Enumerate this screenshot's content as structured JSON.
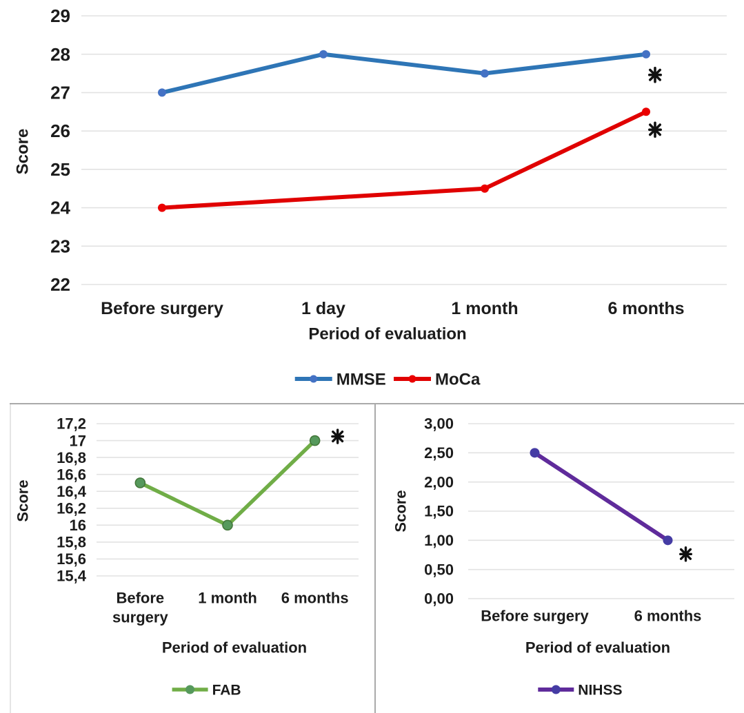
{
  "figure": {
    "background": "#ffffff",
    "text_color": "#1c1c1c",
    "grid_color": "#e2e2e2",
    "divider_color": "#a9a9a9",
    "significance_marker": "*",
    "significance_color": "#111111"
  },
  "chart_data": [
    {
      "id": "cognitive",
      "type": "line",
      "title": "",
      "xlabel": "Period of evaluation",
      "ylabel": "Score",
      "categories": [
        "Before surgery",
        "1 day",
        "1 month",
        "6 months"
      ],
      "ylim": [
        22,
        29
      ],
      "grid": true,
      "legend_position": "bottom",
      "y_ticks": [
        {
          "label": "29",
          "value": 29
        },
        {
          "label": "28",
          "value": 28
        },
        {
          "label": "27",
          "value": 27
        },
        {
          "label": "26",
          "value": 26
        },
        {
          "label": "25",
          "value": 25
        },
        {
          "label": "24",
          "value": 24
        },
        {
          "label": "23",
          "value": 23
        },
        {
          "label": "22",
          "value": 22
        }
      ],
      "series": [
        {
          "name": "MMSE",
          "color": "#2E75B6",
          "marker_color": "#4472C4",
          "values": [
            27,
            28,
            27.5,
            28
          ]
        },
        {
          "name": "MoCa",
          "color": "#E00000",
          "marker_color": "#EB0000",
          "values": [
            24,
            null,
            24.5,
            26.5
          ]
        }
      ],
      "annotations": [
        {
          "label": "*",
          "series": "MMSE",
          "category": "6 months"
        },
        {
          "label": "*",
          "series": "MoCa",
          "category": "6 months"
        }
      ]
    },
    {
      "id": "fab",
      "type": "line",
      "title": "",
      "xlabel": "Period of evaluation",
      "ylabel": "Score",
      "categories": [
        "Before surgery",
        "1 month",
        "6 months"
      ],
      "ylim": [
        15.4,
        17.2
      ],
      "grid": true,
      "legend_position": "bottom",
      "y_ticks": [
        {
          "label": "17,2",
          "value": 17.2
        },
        {
          "label": "17",
          "value": 17
        },
        {
          "label": "16,8",
          "value": 16.8
        },
        {
          "label": "16,6",
          "value": 16.6
        },
        {
          "label": "16,4",
          "value": 16.4
        },
        {
          "label": "16,2",
          "value": 16.2
        },
        {
          "label": "16",
          "value": 16
        },
        {
          "label": "15,8",
          "value": 15.8
        },
        {
          "label": "15,6",
          "value": 15.6
        },
        {
          "label": "15,4",
          "value": 15.4
        }
      ],
      "series": [
        {
          "name": "FAB",
          "color": "#70AD47",
          "marker_color": "#56995C",
          "values": [
            16.5,
            16,
            17
          ]
        }
      ],
      "annotations": [
        {
          "label": "*",
          "series": "FAB",
          "category": "6 months"
        }
      ]
    },
    {
      "id": "nihss",
      "type": "line",
      "title": "",
      "xlabel": "Period of evaluation",
      "ylabel": "Score",
      "categories": [
        "Before surgery",
        "6 months"
      ],
      "ylim": [
        0,
        3
      ],
      "grid": true,
      "legend_position": "bottom",
      "y_ticks": [
        {
          "label": "3,00",
          "value": 3
        },
        {
          "label": "2,50",
          "value": 2.5
        },
        {
          "label": "2,00",
          "value": 2
        },
        {
          "label": "1,50",
          "value": 1.5
        },
        {
          "label": "1,00",
          "value": 1
        },
        {
          "label": "0,50",
          "value": 0.5
        },
        {
          "label": "0,00",
          "value": 0
        }
      ],
      "series": [
        {
          "name": "NIHSS",
          "color": "#5F2B9B",
          "marker_color": "#453CA4",
          "values": [
            2.5,
            1
          ]
        }
      ],
      "annotations": [
        {
          "label": "*",
          "series": "NIHSS",
          "category": "6 months"
        }
      ]
    }
  ]
}
